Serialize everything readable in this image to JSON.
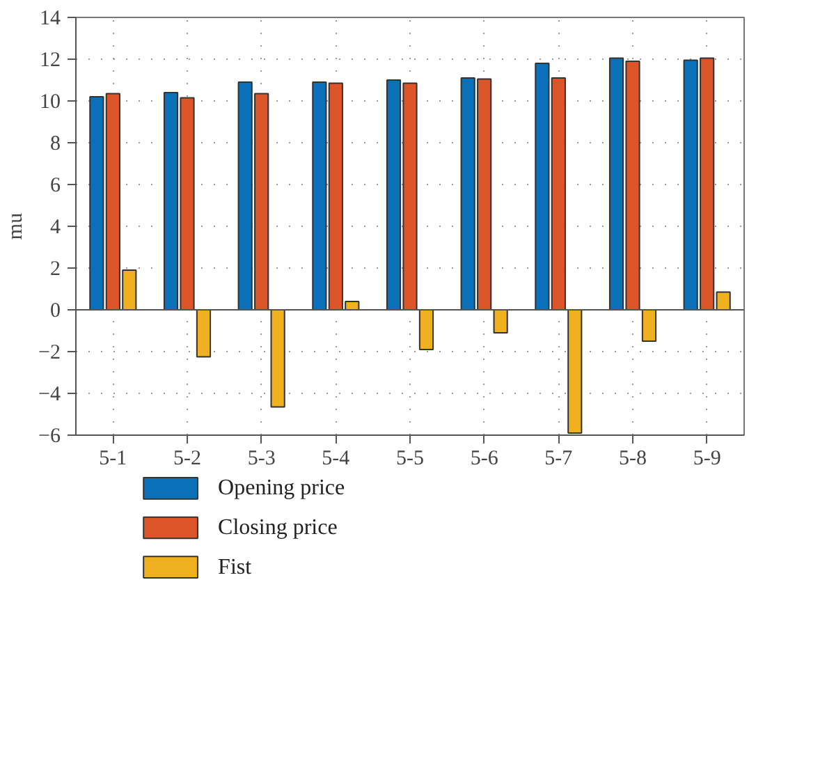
{
  "chart_data": {
    "type": "bar",
    "ylabel": "mu",
    "categories": [
      "5-1",
      "5-2",
      "5-3",
      "5-4",
      "5-5",
      "5-6",
      "5-7",
      "5-8",
      "5-9"
    ],
    "series": [
      {
        "name": "Opening price",
        "color": "#0a70b8",
        "values": [
          10.2,
          10.4,
          10.9,
          10.9,
          11.0,
          11.1,
          11.8,
          12.05,
          11.95
        ]
      },
      {
        "name": "Closing price",
        "color": "#dc5528",
        "values": [
          10.35,
          10.15,
          10.35,
          10.85,
          10.85,
          11.05,
          11.1,
          11.9,
          12.05
        ]
      },
      {
        "name": "Fist",
        "color": "#efb120",
        "values": [
          1.9,
          -2.25,
          -4.65,
          0.4,
          -1.9,
          -1.1,
          -5.9,
          -1.5,
          0.85
        ]
      }
    ],
    "ylim": [
      -6,
      14
    ],
    "yticks": [
      -6,
      -4,
      -2,
      0,
      2,
      4,
      6,
      8,
      10,
      12,
      14
    ],
    "grid": true,
    "legend": "bottom"
  }
}
